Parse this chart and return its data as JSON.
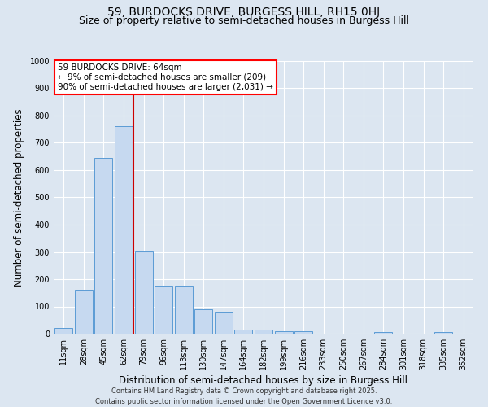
{
  "title1": "59, BURDOCKS DRIVE, BURGESS HILL, RH15 0HJ",
  "title2": "Size of property relative to semi-detached houses in Burgess Hill",
  "xlabel": "Distribution of semi-detached houses by size in Burgess Hill",
  "ylabel": "Number of semi-detached properties",
  "annotation_title": "59 BURDOCKS DRIVE: 64sqm",
  "annotation_line1": "← 9% of semi-detached houses are smaller (209)",
  "annotation_line2": "90% of semi-detached houses are larger (2,031) →",
  "footer1": "Contains HM Land Registry data © Crown copyright and database right 2025.",
  "footer2": "Contains public sector information licensed under the Open Government Licence v3.0.",
  "bin_labels": [
    "11sqm",
    "28sqm",
    "45sqm",
    "62sqm",
    "79sqm",
    "96sqm",
    "113sqm",
    "130sqm",
    "147sqm",
    "164sqm",
    "182sqm",
    "199sqm",
    "216sqm",
    "233sqm",
    "250sqm",
    "267sqm",
    "284sqm",
    "301sqm",
    "318sqm",
    "335sqm",
    "352sqm"
  ],
  "bar_values": [
    20,
    160,
    645,
    760,
    305,
    175,
    175,
    90,
    80,
    15,
    15,
    10,
    10,
    0,
    0,
    0,
    5,
    0,
    0,
    5,
    0
  ],
  "bar_color": "#c6d9f0",
  "bar_edge_color": "#5b9bd5",
  "vline_color": "#cc0000",
  "ylim": [
    0,
    1000
  ],
  "yticks": [
    0,
    100,
    200,
    300,
    400,
    500,
    600,
    700,
    800,
    900,
    1000
  ],
  "background_color": "#dce6f1",
  "grid_color": "#ffffff",
  "title_fontsize": 10,
  "subtitle_fontsize": 9,
  "axis_label_fontsize": 8.5,
  "tick_fontsize": 7,
  "footer_fontsize": 6,
  "annotation_fontsize": 7.5
}
